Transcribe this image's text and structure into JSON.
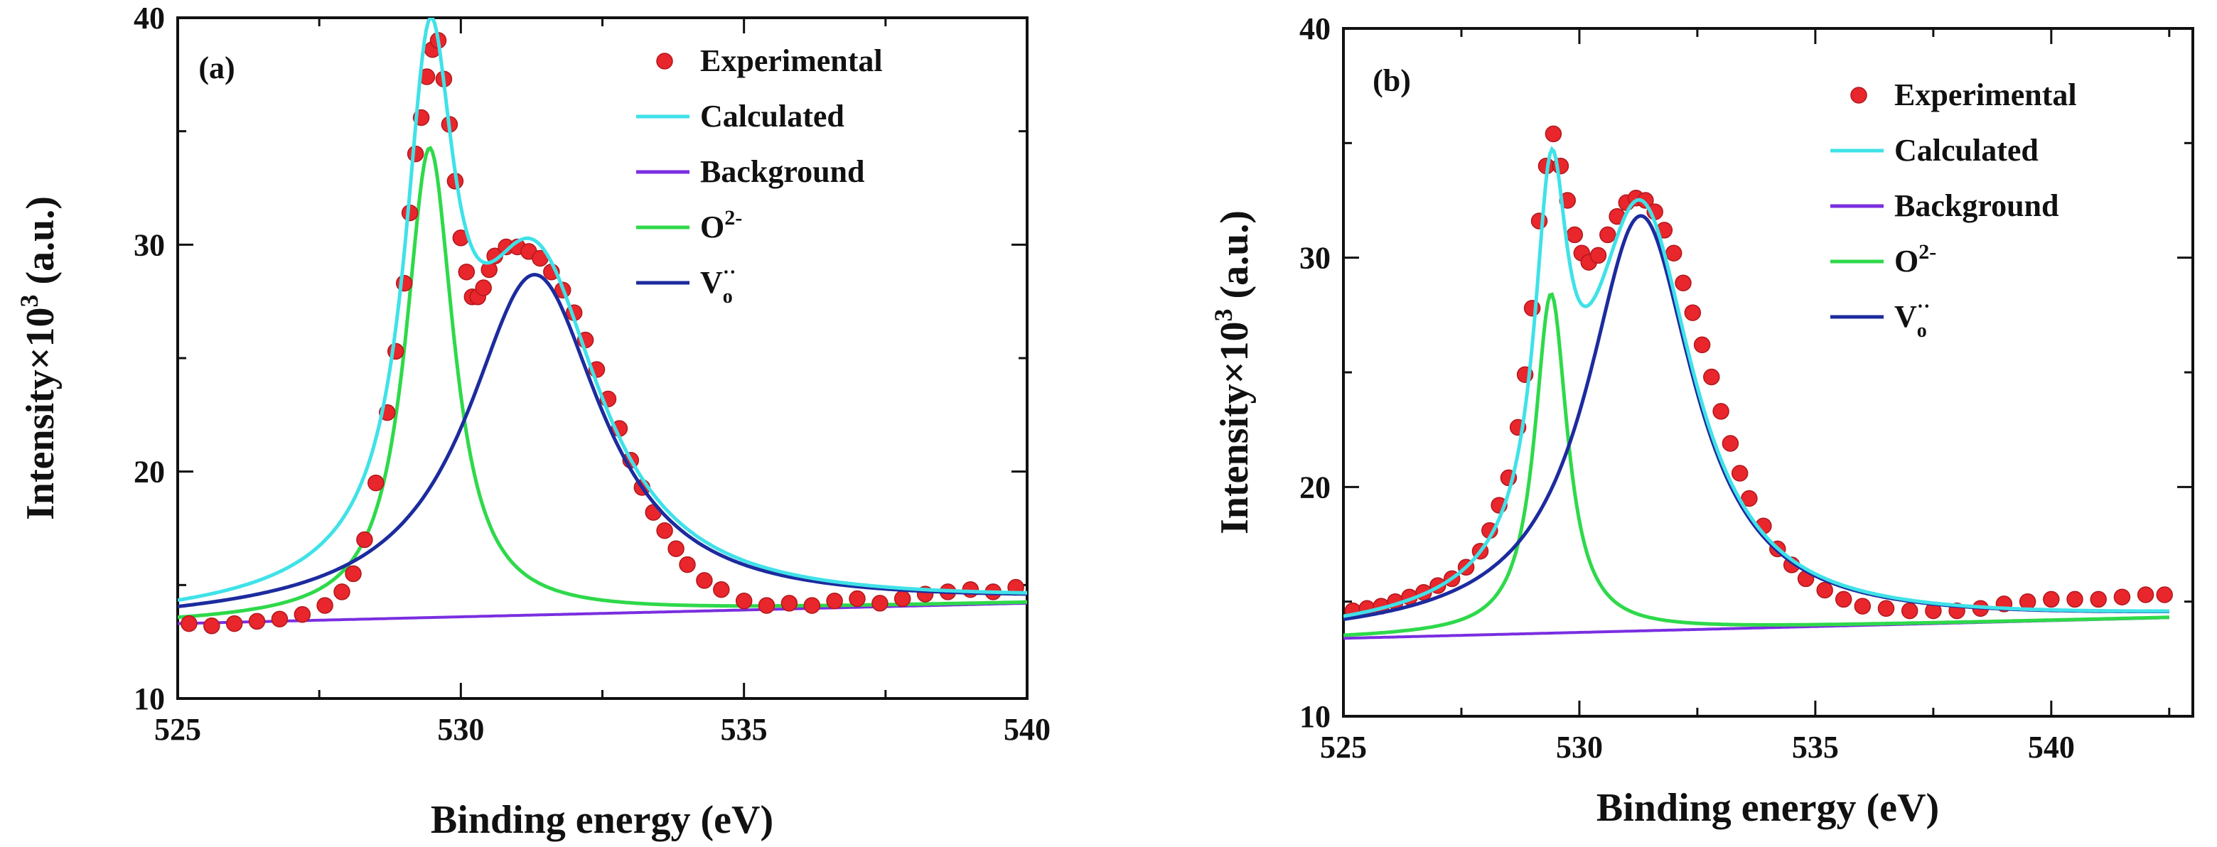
{
  "colors": {
    "experimental": "#e8262c",
    "calculated": "#3fe2e8",
    "background": "#7a2ee0",
    "o2": "#2ed94a",
    "vo": "#1c2b9e",
    "axis": "#111111"
  },
  "chart_data": [
    {
      "type": "line",
      "panel_label": "(a)",
      "xlabel": "Binding energy (eV)",
      "ylabel_main": "Intensity",
      "ylabel_times": "×10",
      "ylabel_sup": "3",
      "ylabel_unit": " (a.u.)",
      "xlim": [
        525,
        540
      ],
      "ylim": [
        10,
        40
      ],
      "xticks": [
        525,
        530,
        535,
        540
      ],
      "yticks": [
        10,
        20,
        30,
        40
      ],
      "legend": {
        "position": "top-right",
        "experimental": "Experimental",
        "calculated": "Calculated",
        "background": "Background",
        "o2_base": "O",
        "o2_sup": "2-",
        "vo_base": "V",
        "vo_sub": "o",
        "vo_sup": "··"
      },
      "background_line": {
        "x": [
          525,
          540
        ],
        "y": [
          13.3,
          14.2
        ]
      },
      "o2_peak": {
        "center": 529.45,
        "height": 20.7,
        "hwhm": 0.52
      },
      "vo_peak": {
        "center": 531.3,
        "height": 15.0,
        "hwhm": 1.45
      },
      "experimental_points": {
        "x": [
          525.2,
          525.6,
          526.0,
          526.4,
          526.8,
          527.2,
          527.6,
          527.9,
          528.1,
          528.3,
          528.5,
          528.7,
          528.85,
          529.0,
          529.1,
          529.2,
          529.3,
          529.4,
          529.5,
          529.6,
          529.7,
          529.8,
          529.9,
          530.0,
          530.1,
          530.2,
          530.3,
          530.4,
          530.5,
          530.6,
          530.8,
          531.0,
          531.2,
          531.4,
          531.6,
          531.8,
          532.0,
          532.2,
          532.4,
          532.6,
          532.8,
          533.0,
          533.2,
          533.4,
          533.6,
          533.8,
          534.0,
          534.3,
          534.6,
          535.0,
          535.4,
          535.8,
          536.2,
          536.6,
          537.0,
          537.4,
          537.8,
          538.2,
          538.6,
          539.0,
          539.4,
          539.8
        ],
        "y": [
          13.3,
          13.2,
          13.3,
          13.4,
          13.5,
          13.7,
          14.1,
          14.7,
          15.5,
          17.0,
          19.5,
          22.6,
          25.3,
          28.3,
          31.4,
          34.0,
          35.6,
          37.4,
          38.6,
          39.0,
          37.3,
          35.3,
          32.8,
          30.3,
          28.8,
          27.7,
          27.7,
          28.1,
          28.9,
          29.5,
          29.9,
          29.9,
          29.7,
          29.4,
          28.8,
          28.0,
          27.0,
          25.8,
          24.5,
          23.2,
          21.9,
          20.5,
          19.3,
          18.2,
          17.4,
          16.6,
          15.9,
          15.2,
          14.8,
          14.3,
          14.1,
          14.2,
          14.1,
          14.3,
          14.4,
          14.2,
          14.4,
          14.6,
          14.7,
          14.8,
          14.7,
          14.9
        ]
      }
    },
    {
      "type": "line",
      "panel_label": "(b)",
      "xlabel": "Binding energy (eV)",
      "ylabel_main": "Intensity",
      "ylabel_times": "×10",
      "ylabel_sup": "3",
      "ylabel_unit": " (a.u.)",
      "xlim": [
        525,
        543
      ],
      "ylim": [
        10,
        40
      ],
      "xticks": [
        525,
        530,
        535,
        540
      ],
      "yticks": [
        10,
        20,
        30,
        40
      ],
      "legend": {
        "position": "top-right",
        "experimental": "Experimental",
        "calculated": "Calculated",
        "background": "Background",
        "o2_base": "O",
        "o2_sup": "2-",
        "vo_base": "V",
        "vo_sub": "o",
        "vo_sup": "··"
      },
      "background_line": {
        "x": [
          525,
          542.5
        ],
        "y": [
          13.4,
          14.3
        ]
      },
      "o2_peak": {
        "center": 529.4,
        "height": 14.8,
        "hwhm": 0.42
      },
      "vo_peak": {
        "center": 531.3,
        "height": 18.1,
        "hwhm": 1.38
      },
      "experimental_points": {
        "x": [
          525.2,
          525.5,
          525.8,
          526.1,
          526.4,
          526.7,
          527.0,
          527.3,
          527.6,
          527.9,
          528.1,
          528.3,
          528.5,
          528.7,
          528.85,
          529.0,
          529.15,
          529.3,
          529.45,
          529.6,
          529.75,
          529.9,
          530.05,
          530.2,
          530.4,
          530.6,
          530.8,
          531.0,
          531.2,
          531.4,
          531.6,
          531.8,
          532.0,
          532.2,
          532.4,
          532.6,
          532.8,
          533.0,
          533.2,
          533.4,
          533.6,
          533.9,
          534.2,
          534.5,
          534.8,
          535.2,
          535.6,
          536.0,
          536.5,
          537.0,
          537.5,
          538.0,
          538.5,
          539.0,
          539.5,
          540.0,
          540.5,
          541.0,
          541.5,
          542.0,
          542.4
        ],
        "y": [
          14.6,
          14.7,
          14.8,
          15.0,
          15.2,
          15.4,
          15.7,
          16.0,
          16.5,
          17.2,
          18.1,
          19.2,
          20.4,
          22.6,
          24.9,
          27.8,
          31.6,
          34.0,
          35.4,
          34.0,
          32.5,
          31.0,
          30.2,
          29.8,
          30.1,
          31.0,
          31.8,
          32.4,
          32.6,
          32.5,
          32.0,
          31.2,
          30.2,
          28.9,
          27.6,
          26.2,
          24.8,
          23.3,
          21.9,
          20.6,
          19.5,
          18.3,
          17.3,
          16.6,
          16.0,
          15.5,
          15.1,
          14.8,
          14.7,
          14.6,
          14.6,
          14.6,
          14.7,
          14.9,
          15.0,
          15.1,
          15.1,
          15.1,
          15.2,
          15.3,
          15.3
        ]
      }
    }
  ]
}
